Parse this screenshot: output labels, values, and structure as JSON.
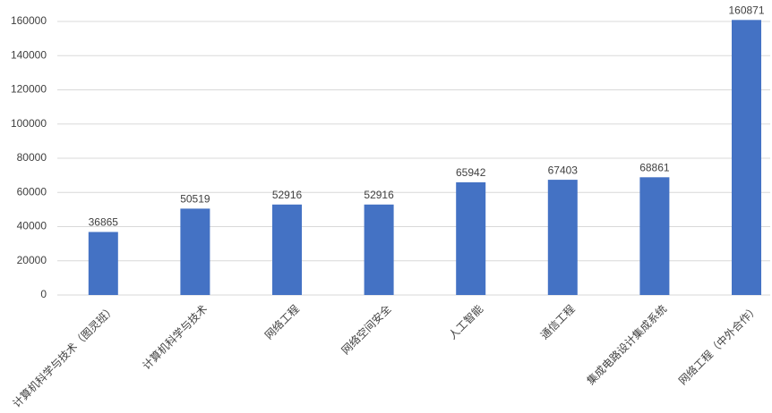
{
  "chart_data": {
    "type": "bar",
    "categories": [
      "计算机科学与技术（图灵班）",
      "计算机科学与技术",
      "网络工程",
      "网络空间安全",
      "人工智能",
      "通信工程",
      "集成电路设计集成系统",
      "网络工程（中外合作）"
    ],
    "values": [
      36865,
      50519,
      52916,
      52916,
      65942,
      67403,
      68861,
      160871
    ],
    "color": "#4472c4",
    "ylim": [
      0,
      160000
    ],
    "yticks": [
      0,
      20000,
      40000,
      60000,
      80000,
      100000,
      120000,
      140000,
      160000
    ],
    "grid": true
  }
}
